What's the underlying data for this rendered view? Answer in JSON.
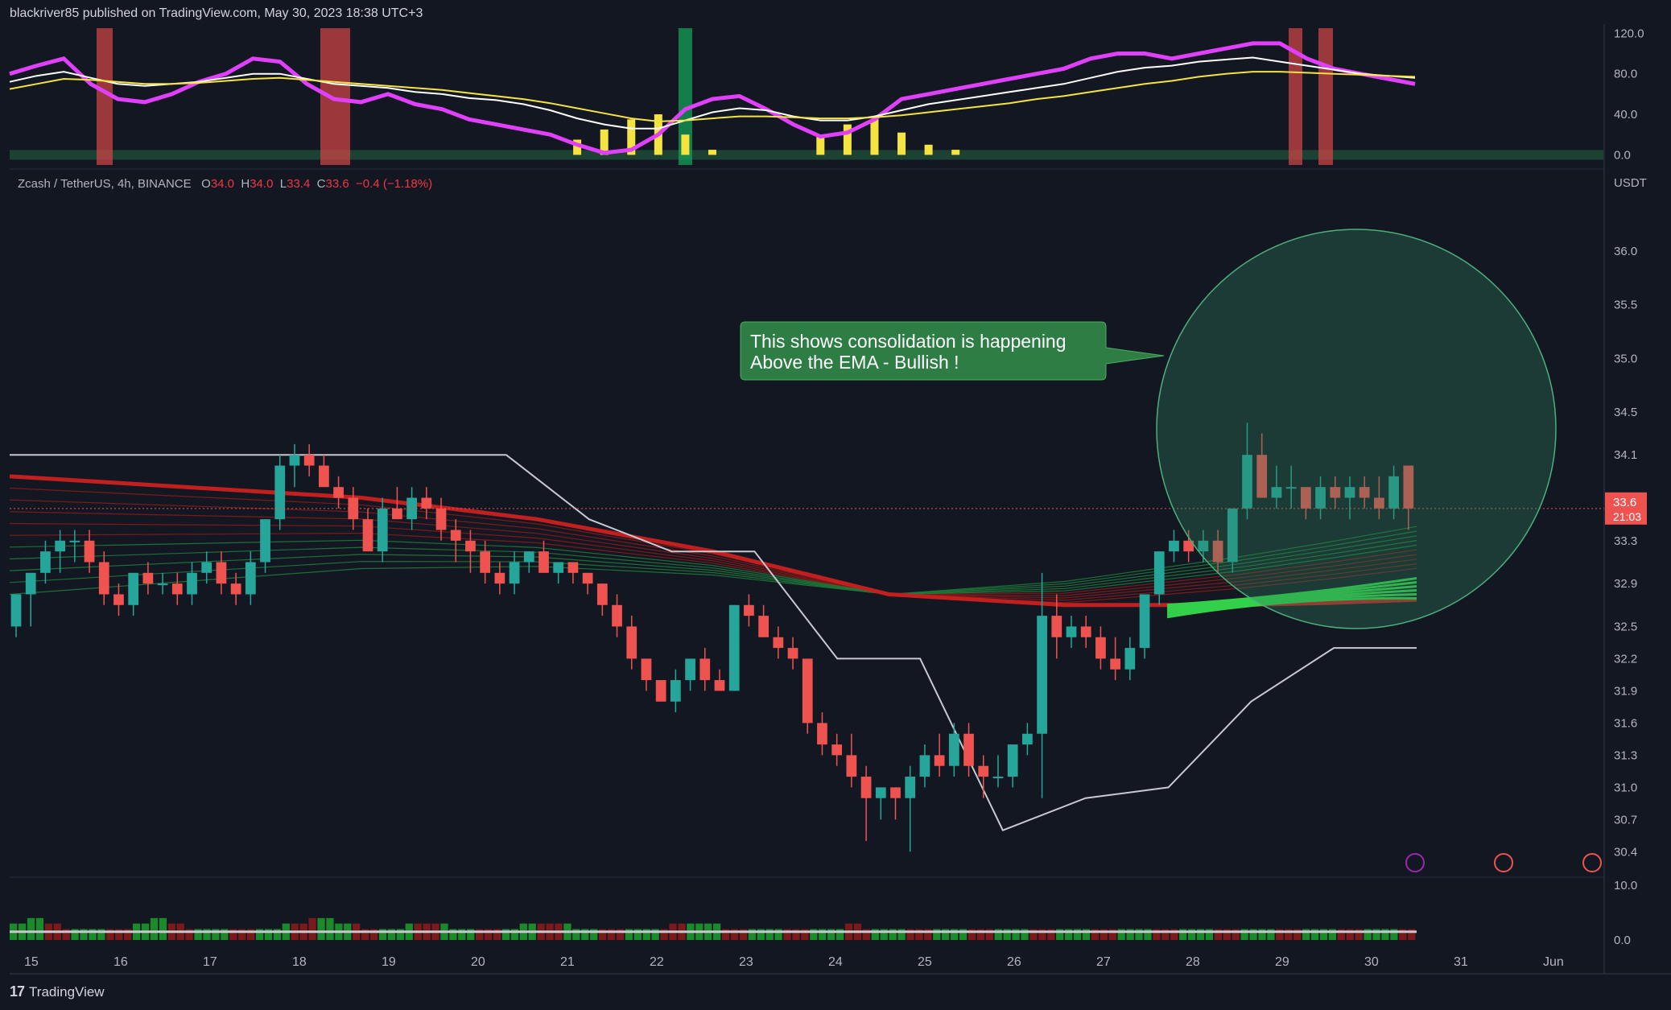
{
  "header": {
    "published": "blackriver85 published on TradingView.com, May 30, 2023 18:38 UTC+3"
  },
  "symbol_line": {
    "name": "Zcash / TetherUS, 4h, BINANCE",
    "o_label": "O",
    "o": "34.0",
    "h_label": "H",
    "h": "34.0",
    "l_label": "L",
    "l": "33.4",
    "c_label": "C",
    "c": "33.6",
    "change": "−0.4 (−1.18%)"
  },
  "annotation": {
    "line1": "This shows consolidation is happening",
    "line2": "Above the EMA - Bullish !"
  },
  "price_axis": {
    "currency": "USDT",
    "ticks": [
      "36.0",
      "35.5",
      "35.0",
      "34.5",
      "34.1",
      "33.7",
      "33.3",
      "32.9",
      "32.5",
      "32.2",
      "31.9",
      "31.6",
      "31.3",
      "31.0",
      "30.7",
      "30.4"
    ],
    "last_price": "33.6",
    "countdown": "21:03"
  },
  "osc_axis": {
    "ticks": [
      "120.0",
      "80.0",
      "40.0",
      "0.0"
    ]
  },
  "vol_axis": {
    "ticks": [
      "10.0",
      "0.0"
    ]
  },
  "time_axis": {
    "ticks": [
      "15",
      "16",
      "17",
      "18",
      "19",
      "20",
      "21",
      "22",
      "23",
      "24",
      "25",
      "26",
      "27",
      "28",
      "29",
      "30",
      "31",
      "Jun"
    ]
  },
  "footer": {
    "brand": "TradingView",
    "logo": "17"
  },
  "colors": {
    "up": "#26a69a",
    "down": "#ef5350",
    "ema": "#c21f1f",
    "ribbon_up": "#22c55e",
    "bg": "#131722",
    "circle": "#2e7d5b"
  },
  "chart_data": [
    {
      "type": "candlestick",
      "title": "Zcash / TetherUS, 4h, BINANCE",
      "ylim": [
        30.2,
        36.6
      ],
      "x": [
        "15",
        "16",
        "17",
        "18",
        "19",
        "20",
        "21",
        "22",
        "23",
        "24",
        "25",
        "26",
        "27",
        "28",
        "29",
        "30",
        "31",
        "Jun"
      ],
      "candles": [
        [
          32.5,
          32.8,
          32.4,
          32.8
        ],
        [
          32.8,
          33.0,
          32.5,
          33.0
        ],
        [
          33.0,
          33.3,
          32.9,
          33.2
        ],
        [
          33.2,
          33.4,
          33.0,
          33.3
        ],
        [
          33.3,
          33.4,
          33.1,
          33.3
        ],
        [
          33.3,
          33.4,
          33.0,
          33.1
        ],
        [
          33.1,
          33.2,
          32.7,
          32.8
        ],
        [
          32.8,
          32.9,
          32.6,
          32.7
        ],
        [
          32.7,
          33.0,
          32.6,
          33.0
        ],
        [
          33.0,
          33.1,
          32.8,
          32.9
        ],
        [
          32.9,
          33.0,
          32.8,
          32.9
        ],
        [
          32.9,
          33.0,
          32.7,
          32.8
        ],
        [
          32.8,
          33.1,
          32.7,
          33.0
        ],
        [
          33.0,
          33.2,
          32.9,
          33.1
        ],
        [
          33.1,
          33.2,
          32.8,
          32.9
        ],
        [
          32.9,
          33.0,
          32.7,
          32.8
        ],
        [
          32.8,
          33.2,
          32.7,
          33.1
        ],
        [
          33.1,
          33.5,
          33.0,
          33.5
        ],
        [
          33.5,
          34.1,
          33.4,
          34.0
        ],
        [
          34.0,
          34.2,
          33.8,
          34.1
        ],
        [
          34.1,
          34.2,
          33.9,
          34.0
        ],
        [
          34.0,
          34.1,
          33.8,
          33.8
        ],
        [
          33.8,
          33.9,
          33.6,
          33.7
        ],
        [
          33.7,
          33.8,
          33.4,
          33.5
        ],
        [
          33.5,
          33.6,
          33.2,
          33.2
        ],
        [
          33.2,
          33.7,
          33.1,
          33.6
        ],
        [
          33.6,
          33.8,
          33.5,
          33.5
        ],
        [
          33.5,
          33.8,
          33.4,
          33.7
        ],
        [
          33.7,
          33.8,
          33.5,
          33.6
        ],
        [
          33.6,
          33.7,
          33.3,
          33.4
        ],
        [
          33.4,
          33.5,
          33.1,
          33.3
        ],
        [
          33.3,
          33.4,
          33.0,
          33.2
        ],
        [
          33.2,
          33.3,
          32.9,
          33.0
        ],
        [
          33.0,
          33.1,
          32.8,
          32.9
        ],
        [
          32.9,
          33.2,
          32.8,
          33.1
        ],
        [
          33.1,
          33.2,
          33.0,
          33.2
        ],
        [
          33.2,
          33.3,
          33.0,
          33.0
        ],
        [
          33.0,
          33.1,
          32.9,
          33.1
        ],
        [
          33.1,
          33.1,
          32.9,
          33.0
        ],
        [
          33.0,
          33.0,
          32.8,
          32.9
        ],
        [
          32.9,
          32.9,
          32.6,
          32.7
        ],
        [
          32.7,
          32.8,
          32.4,
          32.5
        ],
        [
          32.5,
          32.6,
          32.1,
          32.2
        ],
        [
          32.2,
          32.2,
          31.9,
          32.0
        ],
        [
          32.0,
          32.0,
          31.8,
          31.8
        ],
        [
          31.8,
          32.1,
          31.7,
          32.0
        ],
        [
          32.0,
          32.2,
          31.9,
          32.2
        ],
        [
          32.2,
          32.3,
          31.9,
          32.0
        ],
        [
          32.0,
          32.1,
          31.9,
          31.9
        ],
        [
          31.9,
          32.7,
          31.9,
          32.7
        ],
        [
          32.7,
          32.8,
          32.5,
          32.6
        ],
        [
          32.6,
          32.7,
          32.4,
          32.4
        ],
        [
          32.4,
          32.5,
          32.2,
          32.3
        ],
        [
          32.3,
          32.4,
          32.1,
          32.2
        ],
        [
          32.2,
          32.2,
          31.5,
          31.6
        ],
        [
          31.6,
          31.7,
          31.3,
          31.4
        ],
        [
          31.4,
          31.5,
          31.2,
          31.3
        ],
        [
          31.3,
          31.5,
          31.0,
          31.1
        ],
        [
          31.1,
          31.2,
          30.5,
          30.9
        ],
        [
          30.9,
          31.0,
          30.7,
          31.0
        ],
        [
          31.0,
          31.0,
          30.7,
          30.9
        ],
        [
          30.9,
          31.2,
          30.4,
          31.1
        ],
        [
          31.1,
          31.4,
          31.0,
          31.3
        ],
        [
          31.3,
          31.5,
          31.1,
          31.2
        ],
        [
          31.2,
          31.6,
          31.1,
          31.5
        ],
        [
          31.5,
          31.6,
          31.1,
          31.2
        ],
        [
          31.2,
          31.3,
          30.9,
          31.1
        ],
        [
          31.1,
          31.3,
          31.0,
          31.1
        ],
        [
          31.1,
          31.4,
          31.0,
          31.4
        ],
        [
          31.4,
          31.6,
          31.3,
          31.5
        ],
        [
          31.5,
          33.0,
          30.9,
          32.6
        ],
        [
          32.6,
          32.8,
          32.2,
          32.4
        ],
        [
          32.4,
          32.6,
          32.3,
          32.5
        ],
        [
          32.5,
          32.6,
          32.3,
          32.4
        ],
        [
          32.4,
          32.5,
          32.1,
          32.2
        ],
        [
          32.2,
          32.4,
          32.0,
          32.1
        ],
        [
          32.1,
          32.4,
          32.0,
          32.3
        ],
        [
          32.3,
          32.8,
          32.2,
          32.8
        ],
        [
          32.8,
          33.2,
          32.7,
          33.2
        ],
        [
          33.2,
          33.4,
          33.1,
          33.3
        ],
        [
          33.3,
          33.4,
          33.1,
          33.2
        ],
        [
          33.2,
          33.4,
          33.1,
          33.3
        ],
        [
          33.3,
          33.4,
          33.0,
          33.1
        ],
        [
          33.1,
          33.6,
          33.0,
          33.6
        ],
        [
          33.6,
          34.4,
          33.5,
          34.1
        ],
        [
          34.1,
          34.3,
          33.7,
          33.7
        ],
        [
          33.7,
          34.0,
          33.6,
          33.8
        ],
        [
          33.8,
          34.0,
          33.6,
          33.8
        ],
        [
          33.8,
          33.8,
          33.5,
          33.6
        ],
        [
          33.6,
          33.9,
          33.5,
          33.8
        ],
        [
          33.8,
          33.9,
          33.6,
          33.7
        ],
        [
          33.7,
          33.9,
          33.5,
          33.8
        ],
        [
          33.8,
          33.9,
          33.6,
          33.7
        ],
        [
          33.7,
          33.9,
          33.5,
          33.6
        ],
        [
          33.6,
          34.0,
          33.5,
          33.9
        ],
        [
          34.0,
          34.0,
          33.4,
          33.6
        ]
      ],
      "ema": [
        33.9,
        33.85,
        33.8,
        33.75,
        33.7,
        33.6,
        33.5,
        33.35,
        33.2,
        33.0,
        32.8,
        32.75,
        32.7,
        32.7,
        32.7,
        32.72,
        32.75
      ],
      "trail_line": [
        34.1,
        34.1,
        34.1,
        34.1,
        34.1,
        34.1,
        34.1,
        33.5,
        33.2,
        33.2,
        32.2,
        32.2,
        30.6,
        30.9,
        31.0,
        31.8,
        32.3,
        32.3
      ]
    },
    {
      "type": "line",
      "title": "",
      "ylim": [
        -10,
        125
      ],
      "ticks": [
        0,
        40,
        80,
        120
      ],
      "series": [
        {
          "values": [
            80,
            88,
            95,
            70,
            55,
            52,
            60,
            72,
            80,
            95,
            92,
            70,
            55,
            52,
            60,
            50,
            45,
            35,
            30,
            25,
            20,
            10,
            2,
            5,
            20,
            45,
            55,
            58,
            45,
            30,
            18,
            22,
            35,
            55,
            60,
            65,
            70,
            75,
            80,
            85,
            95,
            100,
            100,
            95,
            100,
            105,
            110,
            110,
            95,
            85,
            80,
            75,
            70
          ]
        },
        {
          "values": [
            72,
            78,
            82,
            76,
            70,
            68,
            70,
            72,
            76,
            80,
            80,
            75,
            70,
            68,
            66,
            62,
            60,
            56,
            54,
            50,
            44,
            36,
            30,
            26,
            26,
            34,
            42,
            46,
            44,
            38,
            34,
            34,
            38,
            44,
            50,
            54,
            58,
            62,
            66,
            70,
            76,
            82,
            86,
            88,
            92,
            94,
            96,
            92,
            88,
            84,
            80,
            78,
            76
          ]
        },
        {
          "values": [
            65,
            70,
            75,
            74,
            72,
            70,
            70,
            71,
            73,
            75,
            76,
            74,
            72,
            70,
            68,
            66,
            64,
            61,
            58,
            55,
            51,
            46,
            41,
            36,
            33,
            34,
            36,
            38,
            38,
            37,
            36,
            36,
            37,
            39,
            42,
            45,
            48,
            51,
            55,
            58,
            62,
            66,
            70,
            73,
            77,
            80,
            82,
            82,
            81,
            80,
            79,
            78,
            77
          ]
        }
      ],
      "bars": [
        0,
        0,
        0,
        0,
        0,
        0,
        0,
        0,
        0,
        0,
        0,
        0,
        0,
        0,
        0,
        0,
        0,
        0,
        0,
        0,
        0,
        15,
        25,
        35,
        40,
        20,
        5,
        0,
        0,
        0,
        20,
        30,
        35,
        22,
        10,
        5,
        0,
        0,
        0,
        0,
        0,
        0,
        0,
        0,
        0,
        0,
        0,
        0,
        0,
        0,
        0,
        0,
        0
      ],
      "highlights": [
        "red",
        "red",
        "green",
        "red",
        "red"
      ]
    },
    {
      "type": "bar",
      "title": "",
      "ylim": [
        0,
        10
      ],
      "ticks": [
        0,
        10
      ],
      "values": [
        3,
        3,
        4,
        4,
        3,
        3,
        2,
        2,
        2,
        2,
        2,
        2,
        2,
        2,
        3,
        3,
        4,
        4,
        3,
        3,
        2,
        2,
        2,
        2,
        2,
        2,
        2,
        2,
        2,
        2,
        2,
        3,
        3,
        3,
        4,
        4,
        4,
        3,
        3,
        3,
        2,
        2,
        2,
        2,
        2,
        3,
        3,
        3,
        3,
        3,
        2,
        2,
        2,
        2,
        2,
        2,
        2,
        2,
        3,
        3,
        3,
        3,
        3,
        3,
        2,
        2,
        2,
        2,
        2,
        2,
        2,
        2,
        2,
        2,
        2,
        3,
        3,
        3,
        3,
        3,
        3,
        2,
        2,
        2,
        2,
        2,
        2,
        2,
        2,
        2,
        2,
        2,
        2,
        2,
        2,
        3,
        3,
        2,
        2,
        2,
        2,
        2,
        2,
        2,
        2,
        2,
        2,
        2,
        2,
        2,
        2,
        2,
        2,
        2,
        2,
        2,
        2,
        2,
        2,
        2,
        2,
        2,
        2,
        2,
        2,
        2,
        2,
        2,
        2,
        2,
        2,
        2,
        2,
        2,
        2,
        2,
        2,
        2,
        2,
        2,
        2,
        2,
        2,
        2,
        2,
        2,
        2,
        2,
        2,
        2,
        2,
        2,
        2,
        2,
        2,
        2,
        2,
        2,
        2,
        2
      ]
    }
  ]
}
